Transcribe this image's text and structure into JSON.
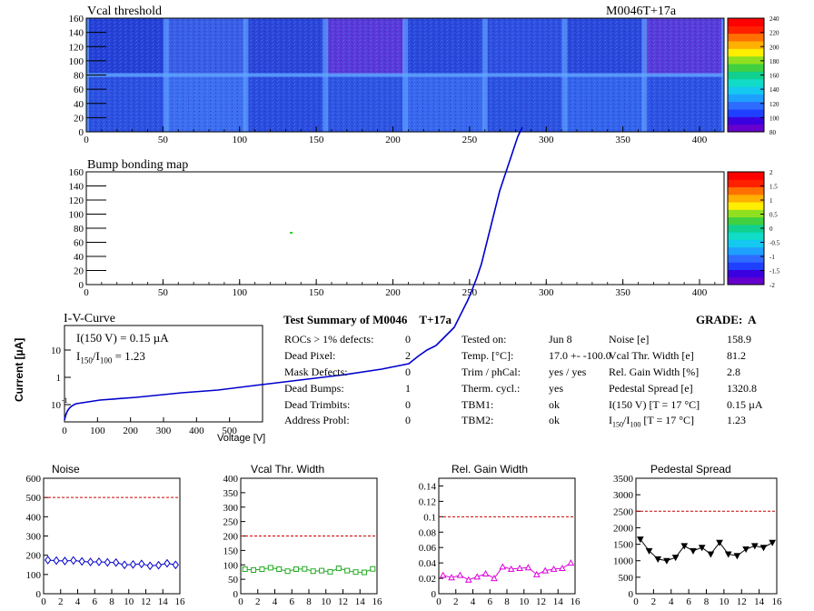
{
  "header": {
    "module_id": "M0046T+17a"
  },
  "vcal_map": {
    "title": "Vcal threshold",
    "x_ticks": [
      "0",
      "50",
      "100",
      "150",
      "200",
      "250",
      "300",
      "350",
      "400"
    ],
    "y_ticks": [
      "0",
      "20",
      "40",
      "60",
      "80",
      "100",
      "120",
      "140",
      "160"
    ],
    "palette_ticks": [
      "80",
      "100",
      "120",
      "140",
      "160",
      "180",
      "200",
      "220",
      "240"
    ]
  },
  "bump_map": {
    "title": "Bump bonding map",
    "x_ticks": [
      "0",
      "50",
      "100",
      "150",
      "200",
      "250",
      "300",
      "350",
      "400"
    ],
    "y_ticks": [
      "0",
      "20",
      "40",
      "60",
      "80",
      "100",
      "120",
      "140",
      "160"
    ],
    "palette_ticks": [
      "-2",
      "-1.5",
      "-1",
      "-0.5",
      "0",
      "0.5",
      "1",
      "1.5",
      "2"
    ]
  },
  "iv_curve": {
    "title": "I-V-Curve",
    "annotation_i150": "I(150 V) = 0.15 µA",
    "ratio_label_main": "I",
    "ratio_sub_a": "150",
    "ratio_sub_b": "100",
    "ratio_value": "= 1.23",
    "ylabel": "Current [µA]",
    "xlabel": "Voltage [V]",
    "x_ticks": [
      "0",
      "100",
      "200",
      "300",
      "400",
      "500"
    ],
    "y_ticks": [
      "10",
      "1",
      "10"
    ],
    "y_tick_exp": "-1"
  },
  "summary": {
    "title": "Test Summary of M0046",
    "title_suffix": "T+17a",
    "grade_label": "GRADE:",
    "grade": "A",
    "col1": [
      {
        "label": "ROCs > 1% defects:",
        "value": "0"
      },
      {
        "label": "Dead Pixel:",
        "value": "2"
      },
      {
        "label": "Mask Defects:",
        "value": "0"
      },
      {
        "label": "Dead Bumps:",
        "value": "1"
      },
      {
        "label": "Dead Trimbits:",
        "value": "0"
      },
      {
        "label": "Address Probl:",
        "value": "0"
      }
    ],
    "col2": [
      {
        "label": "Tested on:",
        "value": "Jun 8"
      },
      {
        "label": "Temp. [°C]:",
        "value": "17.0 +- -100.0"
      },
      {
        "label": "Trim / phCal:",
        "value": "yes / yes"
      },
      {
        "label": "Therm. cycl.:",
        "value": "yes"
      },
      {
        "label": "TBM1:",
        "value": "ok"
      },
      {
        "label": "TBM2:",
        "value": "ok"
      }
    ],
    "col3": [
      {
        "label": "Noise [e]",
        "value": "158.9"
      },
      {
        "label": "Vcal Thr. Width [e]",
        "value": "81.2"
      },
      {
        "label": "Rel. Gain Width [%]",
        "value": "2.8"
      },
      {
        "label": "Pedestal Spread [e]",
        "value": "1320.8"
      },
      {
        "label": "I(150 V) [T = 17 °C]",
        "value": "0.15 µA"
      },
      {
        "label": "I",
        "sub_a": "150",
        "sub_b": "100",
        "suffix": " [T = 17 °C]",
        "value": "1.23"
      }
    ]
  },
  "chart_data": [
    {
      "type": "scatter",
      "title": "Noise",
      "x": [
        0,
        1,
        2,
        3,
        4,
        5,
        6,
        7,
        8,
        9,
        10,
        11,
        12,
        13,
        14,
        15
      ],
      "values": [
        175,
        172,
        170,
        173,
        168,
        165,
        166,
        163,
        162,
        150,
        152,
        155,
        145,
        148,
        158,
        150
      ],
      "ylim": [
        0,
        600
      ],
      "xlim": [
        0,
        16
      ],
      "y_ticks": [
        0,
        100,
        200,
        300,
        400,
        500,
        600
      ],
      "x_ticks": [
        0,
        2,
        4,
        6,
        8,
        10,
        12,
        14,
        16
      ],
      "threshold": 500,
      "color": "#0000cc",
      "marker": "diamond"
    },
    {
      "type": "scatter",
      "title": "Vcal Thr. Width",
      "x": [
        0,
        1,
        2,
        3,
        4,
        5,
        6,
        7,
        8,
        9,
        10,
        11,
        12,
        13,
        14,
        15
      ],
      "values": [
        85,
        82,
        85,
        90,
        85,
        78,
        85,
        86,
        78,
        80,
        76,
        88,
        80,
        75,
        74,
        86
      ],
      "ylim": [
        0,
        400
      ],
      "xlim": [
        0,
        16
      ],
      "y_ticks": [
        0,
        50,
        100,
        150,
        200,
        250,
        300,
        350,
        400
      ],
      "x_ticks": [
        0,
        2,
        4,
        6,
        8,
        10,
        12,
        14,
        16
      ],
      "threshold": 200,
      "color": "#22aa22",
      "marker": "square"
    },
    {
      "type": "scatter",
      "title": "Rel. Gain Width",
      "x": [
        0,
        1,
        2,
        3,
        4,
        5,
        6,
        7,
        8,
        9,
        10,
        11,
        12,
        13,
        14,
        15
      ],
      "values": [
        0.024,
        0.021,
        0.024,
        0.018,
        0.022,
        0.026,
        0.02,
        0.035,
        0.032,
        0.033,
        0.034,
        0.025,
        0.03,
        0.032,
        0.033,
        0.04
      ],
      "ylim": [
        0,
        0.15
      ],
      "xlim": [
        0,
        16
      ],
      "y_ticks": [
        0,
        0.02,
        0.04,
        0.06,
        0.08,
        0.1,
        0.12,
        0.14
      ],
      "x_ticks": [
        0,
        2,
        4,
        6,
        8,
        10,
        12,
        14,
        16
      ],
      "threshold": 0.1,
      "color": "#dd00dd",
      "marker": "triangle"
    },
    {
      "type": "scatter",
      "title": "Pedestal Spread",
      "x": [
        0,
        1,
        2,
        3,
        4,
        5,
        6,
        7,
        8,
        9,
        10,
        11,
        12,
        13,
        14,
        15
      ],
      "values": [
        1650,
        1300,
        1050,
        1000,
        1100,
        1450,
        1300,
        1400,
        1200,
        1550,
        1200,
        1150,
        1350,
        1450,
        1400,
        1550
      ],
      "ylim": [
        0,
        3500
      ],
      "xlim": [
        0,
        16
      ],
      "y_ticks": [
        0,
        500,
        1000,
        1500,
        2000,
        2500,
        3000,
        3500
      ],
      "x_ticks": [
        0,
        2,
        4,
        6,
        8,
        10,
        12,
        14,
        16
      ],
      "threshold": 2500,
      "color": "#000000",
      "marker": "triangle-down"
    }
  ]
}
